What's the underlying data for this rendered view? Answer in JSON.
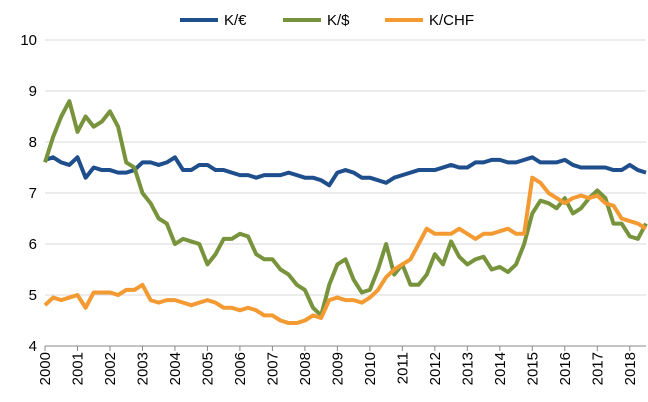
{
  "chart_data": {
    "type": "line",
    "x": [
      2000,
      2000.25,
      2000.5,
      2000.75,
      2001,
      2001.25,
      2001.5,
      2001.75,
      2002,
      2002.25,
      2002.5,
      2002.75,
      2003,
      2003.25,
      2003.5,
      2003.75,
      2004,
      2004.25,
      2004.5,
      2004.75,
      2005,
      2005.25,
      2005.5,
      2005.75,
      2006,
      2006.25,
      2006.5,
      2006.75,
      2007,
      2007.25,
      2007.5,
      2007.75,
      2008,
      2008.25,
      2008.5,
      2008.75,
      2009,
      2009.25,
      2009.5,
      2009.75,
      2010,
      2010.25,
      2010.5,
      2010.75,
      2011,
      2011.25,
      2011.5,
      2011.75,
      2012,
      2012.25,
      2012.5,
      2012.75,
      2013,
      2013.25,
      2013.5,
      2013.75,
      2014,
      2014.25,
      2014.5,
      2014.75,
      2015,
      2015.25,
      2015.5,
      2015.75,
      2016,
      2016.25,
      2016.5,
      2016.75,
      2017,
      2017.25,
      2017.5,
      2017.75,
      2018,
      2018.25,
      2018.5
    ],
    "series": [
      {
        "name": "K/€",
        "color": "#1f4e8c",
        "values": [
          7.65,
          7.7,
          7.6,
          7.55,
          7.7,
          7.3,
          7.5,
          7.45,
          7.45,
          7.4,
          7.4,
          7.45,
          7.6,
          7.6,
          7.55,
          7.6,
          7.7,
          7.45,
          7.45,
          7.55,
          7.55,
          7.45,
          7.45,
          7.4,
          7.35,
          7.35,
          7.3,
          7.35,
          7.35,
          7.35,
          7.4,
          7.35,
          7.3,
          7.3,
          7.25,
          7.15,
          7.4,
          7.45,
          7.4,
          7.3,
          7.3,
          7.25,
          7.2,
          7.3,
          7.35,
          7.4,
          7.45,
          7.45,
          7.45,
          7.5,
          7.55,
          7.5,
          7.5,
          7.6,
          7.6,
          7.65,
          7.65,
          7.6,
          7.6,
          7.65,
          7.7,
          7.6,
          7.6,
          7.6,
          7.65,
          7.55,
          7.5,
          7.5,
          7.5,
          7.5,
          7.45,
          7.45,
          7.55,
          7.45,
          7.4
        ]
      },
      {
        "name": "K/$",
        "color": "#77933c",
        "values": [
          7.6,
          8.1,
          8.5,
          8.8,
          8.2,
          8.5,
          8.3,
          8.4,
          8.6,
          8.3,
          7.6,
          7.5,
          7.0,
          6.8,
          6.5,
          6.4,
          6.0,
          6.1,
          6.05,
          6.0,
          5.6,
          5.8,
          6.1,
          6.1,
          6.2,
          6.15,
          5.8,
          5.7,
          5.7,
          5.5,
          5.4,
          5.2,
          5.1,
          4.75,
          4.6,
          5.2,
          5.6,
          5.7,
          5.3,
          5.05,
          5.1,
          5.5,
          6.0,
          5.4,
          5.6,
          5.2,
          5.2,
          5.4,
          5.8,
          5.6,
          6.05,
          5.75,
          5.6,
          5.7,
          5.75,
          5.5,
          5.55,
          5.45,
          5.6,
          6.0,
          6.6,
          6.85,
          6.8,
          6.7,
          6.9,
          6.6,
          6.7,
          6.9,
          7.05,
          6.9,
          6.4,
          6.4,
          6.15,
          6.1,
          6.4
        ]
      },
      {
        "name": "K/CHF",
        "color": "#f39a32",
        "values": [
          4.8,
          4.95,
          4.9,
          4.95,
          5.0,
          4.75,
          5.05,
          5.05,
          5.05,
          5.0,
          5.1,
          5.1,
          5.2,
          4.9,
          4.85,
          4.9,
          4.9,
          4.85,
          4.8,
          4.85,
          4.9,
          4.85,
          4.75,
          4.75,
          4.7,
          4.75,
          4.7,
          4.6,
          4.6,
          4.5,
          4.45,
          4.45,
          4.5,
          4.6,
          4.55,
          4.9,
          4.95,
          4.9,
          4.9,
          4.85,
          4.95,
          5.1,
          5.35,
          5.5,
          5.6,
          5.7,
          6.0,
          6.3,
          6.2,
          6.2,
          6.2,
          6.3,
          6.2,
          6.1,
          6.2,
          6.2,
          6.25,
          6.3,
          6.2,
          6.2,
          7.3,
          7.2,
          7.0,
          6.9,
          6.8,
          6.9,
          6.95,
          6.9,
          6.95,
          6.8,
          6.75,
          6.5,
          6.45,
          6.4,
          6.3
        ]
      }
    ],
    "xlim": [
      2000,
      2018.5
    ],
    "xticks": [
      2000,
      2001,
      2002,
      2003,
      2004,
      2005,
      2006,
      2007,
      2008,
      2009,
      2010,
      2011,
      2012,
      2013,
      2014,
      2015,
      2016,
      2017,
      2018
    ],
    "ylim": [
      4,
      10
    ],
    "yticks": [
      4,
      5,
      6,
      7,
      8,
      9,
      10
    ],
    "grid": true,
    "legend": "top"
  }
}
